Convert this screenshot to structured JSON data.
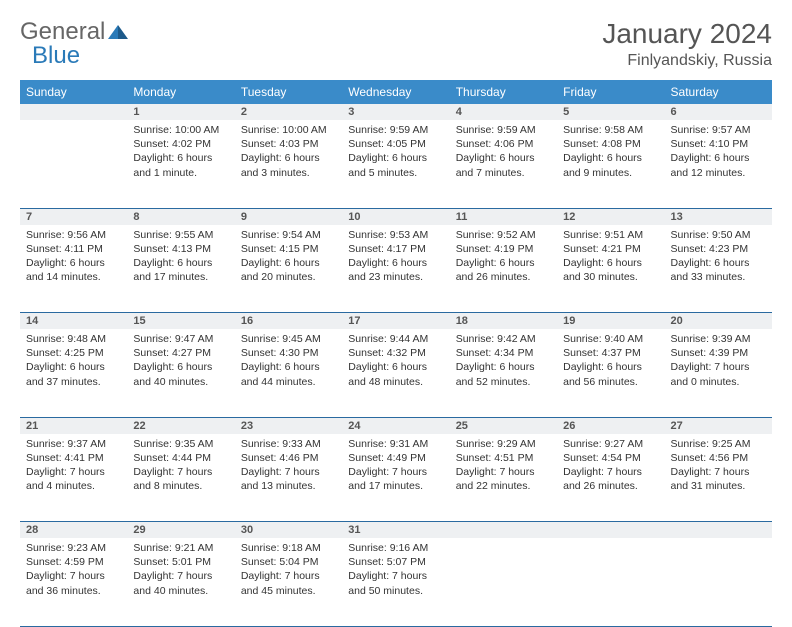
{
  "logo": {
    "general": "General",
    "blue": "Blue"
  },
  "title": "January 2024",
  "location": "Finlyandskiy, Russia",
  "colors": {
    "header_bg": "#3a8bc9",
    "header_text": "#ffffff",
    "daynum_bg": "#eef0f2",
    "row_border": "#2a6aa0",
    "logo_blue": "#2a7ab8",
    "text": "#333333"
  },
  "weekdays": [
    "Sunday",
    "Monday",
    "Tuesday",
    "Wednesday",
    "Thursday",
    "Friday",
    "Saturday"
  ],
  "weeks": [
    {
      "nums": [
        "",
        "1",
        "2",
        "3",
        "4",
        "5",
        "6"
      ],
      "cells": [
        null,
        {
          "sunrise": "Sunrise: 10:00 AM",
          "sunset": "Sunset: 4:02 PM",
          "day1": "Daylight: 6 hours",
          "day2": "and 1 minute."
        },
        {
          "sunrise": "Sunrise: 10:00 AM",
          "sunset": "Sunset: 4:03 PM",
          "day1": "Daylight: 6 hours",
          "day2": "and 3 minutes."
        },
        {
          "sunrise": "Sunrise: 9:59 AM",
          "sunset": "Sunset: 4:05 PM",
          "day1": "Daylight: 6 hours",
          "day2": "and 5 minutes."
        },
        {
          "sunrise": "Sunrise: 9:59 AM",
          "sunset": "Sunset: 4:06 PM",
          "day1": "Daylight: 6 hours",
          "day2": "and 7 minutes."
        },
        {
          "sunrise": "Sunrise: 9:58 AM",
          "sunset": "Sunset: 4:08 PM",
          "day1": "Daylight: 6 hours",
          "day2": "and 9 minutes."
        },
        {
          "sunrise": "Sunrise: 9:57 AM",
          "sunset": "Sunset: 4:10 PM",
          "day1": "Daylight: 6 hours",
          "day2": "and 12 minutes."
        }
      ]
    },
    {
      "nums": [
        "7",
        "8",
        "9",
        "10",
        "11",
        "12",
        "13"
      ],
      "cells": [
        {
          "sunrise": "Sunrise: 9:56 AM",
          "sunset": "Sunset: 4:11 PM",
          "day1": "Daylight: 6 hours",
          "day2": "and 14 minutes."
        },
        {
          "sunrise": "Sunrise: 9:55 AM",
          "sunset": "Sunset: 4:13 PM",
          "day1": "Daylight: 6 hours",
          "day2": "and 17 minutes."
        },
        {
          "sunrise": "Sunrise: 9:54 AM",
          "sunset": "Sunset: 4:15 PM",
          "day1": "Daylight: 6 hours",
          "day2": "and 20 minutes."
        },
        {
          "sunrise": "Sunrise: 9:53 AM",
          "sunset": "Sunset: 4:17 PM",
          "day1": "Daylight: 6 hours",
          "day2": "and 23 minutes."
        },
        {
          "sunrise": "Sunrise: 9:52 AM",
          "sunset": "Sunset: 4:19 PM",
          "day1": "Daylight: 6 hours",
          "day2": "and 26 minutes."
        },
        {
          "sunrise": "Sunrise: 9:51 AM",
          "sunset": "Sunset: 4:21 PM",
          "day1": "Daylight: 6 hours",
          "day2": "and 30 minutes."
        },
        {
          "sunrise": "Sunrise: 9:50 AM",
          "sunset": "Sunset: 4:23 PM",
          "day1": "Daylight: 6 hours",
          "day2": "and 33 minutes."
        }
      ]
    },
    {
      "nums": [
        "14",
        "15",
        "16",
        "17",
        "18",
        "19",
        "20"
      ],
      "cells": [
        {
          "sunrise": "Sunrise: 9:48 AM",
          "sunset": "Sunset: 4:25 PM",
          "day1": "Daylight: 6 hours",
          "day2": "and 37 minutes."
        },
        {
          "sunrise": "Sunrise: 9:47 AM",
          "sunset": "Sunset: 4:27 PM",
          "day1": "Daylight: 6 hours",
          "day2": "and 40 minutes."
        },
        {
          "sunrise": "Sunrise: 9:45 AM",
          "sunset": "Sunset: 4:30 PM",
          "day1": "Daylight: 6 hours",
          "day2": "and 44 minutes."
        },
        {
          "sunrise": "Sunrise: 9:44 AM",
          "sunset": "Sunset: 4:32 PM",
          "day1": "Daylight: 6 hours",
          "day2": "and 48 minutes."
        },
        {
          "sunrise": "Sunrise: 9:42 AM",
          "sunset": "Sunset: 4:34 PM",
          "day1": "Daylight: 6 hours",
          "day2": "and 52 minutes."
        },
        {
          "sunrise": "Sunrise: 9:40 AM",
          "sunset": "Sunset: 4:37 PM",
          "day1": "Daylight: 6 hours",
          "day2": "and 56 minutes."
        },
        {
          "sunrise": "Sunrise: 9:39 AM",
          "sunset": "Sunset: 4:39 PM",
          "day1": "Daylight: 7 hours",
          "day2": "and 0 minutes."
        }
      ]
    },
    {
      "nums": [
        "21",
        "22",
        "23",
        "24",
        "25",
        "26",
        "27"
      ],
      "cells": [
        {
          "sunrise": "Sunrise: 9:37 AM",
          "sunset": "Sunset: 4:41 PM",
          "day1": "Daylight: 7 hours",
          "day2": "and 4 minutes."
        },
        {
          "sunrise": "Sunrise: 9:35 AM",
          "sunset": "Sunset: 4:44 PM",
          "day1": "Daylight: 7 hours",
          "day2": "and 8 minutes."
        },
        {
          "sunrise": "Sunrise: 9:33 AM",
          "sunset": "Sunset: 4:46 PM",
          "day1": "Daylight: 7 hours",
          "day2": "and 13 minutes."
        },
        {
          "sunrise": "Sunrise: 9:31 AM",
          "sunset": "Sunset: 4:49 PM",
          "day1": "Daylight: 7 hours",
          "day2": "and 17 minutes."
        },
        {
          "sunrise": "Sunrise: 9:29 AM",
          "sunset": "Sunset: 4:51 PM",
          "day1": "Daylight: 7 hours",
          "day2": "and 22 minutes."
        },
        {
          "sunrise": "Sunrise: 9:27 AM",
          "sunset": "Sunset: 4:54 PM",
          "day1": "Daylight: 7 hours",
          "day2": "and 26 minutes."
        },
        {
          "sunrise": "Sunrise: 9:25 AM",
          "sunset": "Sunset: 4:56 PM",
          "day1": "Daylight: 7 hours",
          "day2": "and 31 minutes."
        }
      ]
    },
    {
      "nums": [
        "28",
        "29",
        "30",
        "31",
        "",
        "",
        ""
      ],
      "cells": [
        {
          "sunrise": "Sunrise: 9:23 AM",
          "sunset": "Sunset: 4:59 PM",
          "day1": "Daylight: 7 hours",
          "day2": "and 36 minutes."
        },
        {
          "sunrise": "Sunrise: 9:21 AM",
          "sunset": "Sunset: 5:01 PM",
          "day1": "Daylight: 7 hours",
          "day2": "and 40 minutes."
        },
        {
          "sunrise": "Sunrise: 9:18 AM",
          "sunset": "Sunset: 5:04 PM",
          "day1": "Daylight: 7 hours",
          "day2": "and 45 minutes."
        },
        {
          "sunrise": "Sunrise: 9:16 AM",
          "sunset": "Sunset: 5:07 PM",
          "day1": "Daylight: 7 hours",
          "day2": "and 50 minutes."
        },
        null,
        null,
        null
      ]
    }
  ]
}
